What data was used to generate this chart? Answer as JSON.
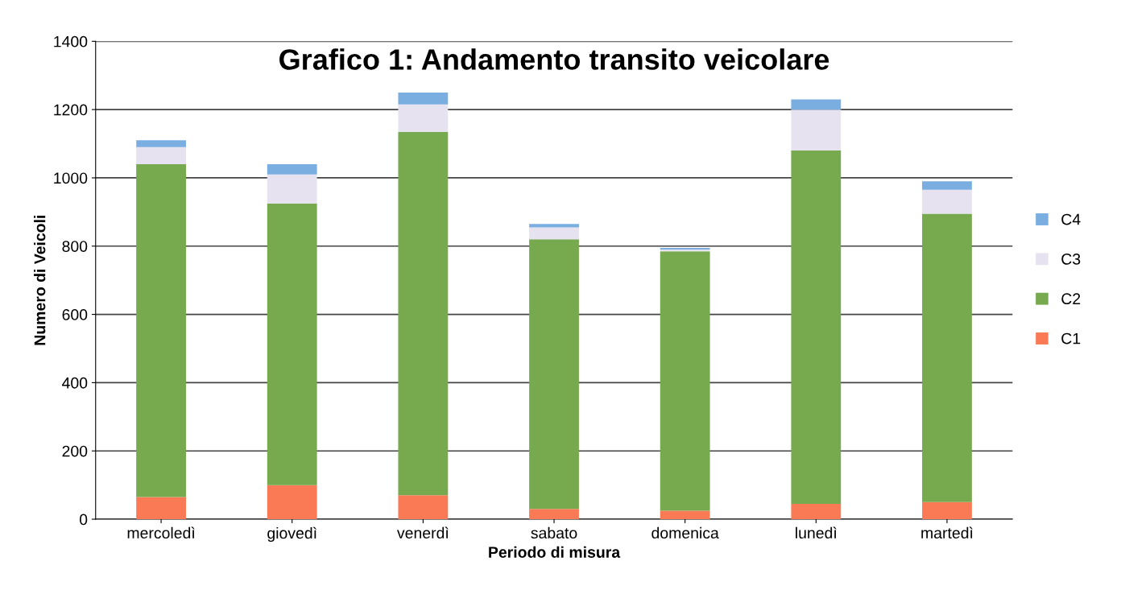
{
  "chart_data": {
    "type": "bar",
    "title": "Grafico 1: Andamento transito veicolare",
    "xlabel": "Periodo di misura",
    "ylabel": "Numero di Veicoli",
    "categories": [
      "mercoledì",
      "giovedì",
      "venerdì",
      "sabato",
      "domenica",
      "lunedì",
      "martedì"
    ],
    "series": [
      {
        "name": "C1",
        "color": "#f97a55",
        "values": [
          65,
          100,
          70,
          30,
          25,
          45,
          50
        ]
      },
      {
        "name": "C2",
        "color": "#77a94f",
        "values": [
          975,
          825,
          1065,
          790,
          760,
          1035,
          845
        ]
      },
      {
        "name": "C3",
        "color": "#e6e2ef",
        "values": [
          50,
          85,
          80,
          35,
          5,
          120,
          70
        ]
      },
      {
        "name": "C4",
        "color": "#7aaee0",
        "values": [
          20,
          30,
          35,
          10,
          5,
          30,
          25
        ]
      }
    ],
    "stacked": true,
    "ylim": [
      0,
      1400
    ],
    "yticks": [
      0,
      200,
      400,
      600,
      800,
      1000,
      1200,
      1400
    ],
    "grid": "y",
    "legend": "right"
  }
}
